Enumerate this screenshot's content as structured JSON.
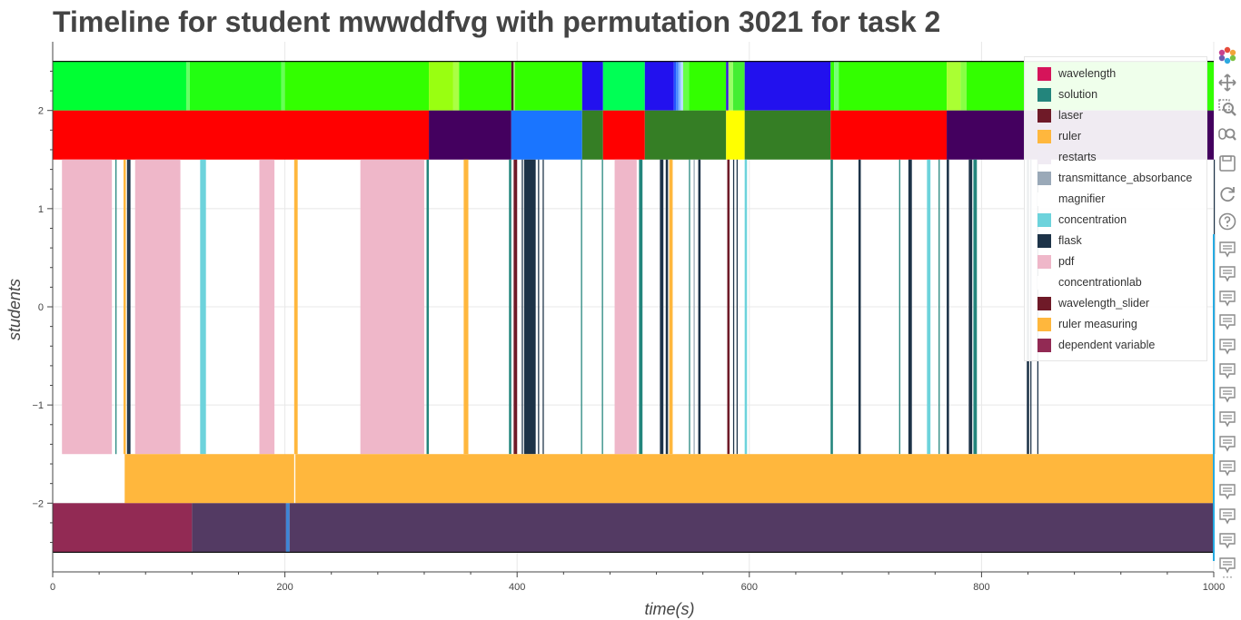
{
  "title": "Timeline for student mwwddfvg with permutation 3021 for task 2",
  "chart_data": {
    "type": "timeline",
    "title": "Timeline for student mwwddfvg with permutation 3021 for task 2",
    "xlabel": "time(s)",
    "ylabel": "students",
    "xlim": [
      0,
      1000
    ],
    "ylim": [
      -2.7,
      2.7
    ],
    "x_ticks": [
      0,
      200,
      400,
      600,
      800,
      1000
    ],
    "y_ticks": [
      2,
      1,
      0,
      -1,
      -2
    ],
    "x_tick_labels": [
      "0",
      "200",
      "400",
      "600",
      "800",
      "1000"
    ],
    "y_tick_labels": [
      "2",
      "1",
      "0",
      "−1",
      "−2"
    ],
    "grid": true,
    "legend_position": "top-right",
    "legend": [
      {
        "label": "wavelength",
        "color": "#d6145a"
      },
      {
        "label": "solution",
        "color": "#23857c"
      },
      {
        "label": "laser",
        "color": "#6f1a28"
      },
      {
        "label": "ruler",
        "color": "#ffb73d"
      },
      {
        "label": "restarts",
        "color": "#f0ebf3"
      },
      {
        "label": "transmittance_absorbance",
        "color": "#9aa9b8"
      },
      {
        "label": "magnifier",
        "color": "#ffffff"
      },
      {
        "label": "concentration",
        "color": "#6dd3dc"
      },
      {
        "label": "flask",
        "color": "#1d3348"
      },
      {
        "label": "pdf",
        "color": "#efb7c9"
      },
      {
        "label": "concentrationlab",
        "color": "#ffffff"
      },
      {
        "label": "wavelength_slider",
        "color": "#6f1a28"
      },
      {
        "label": "ruler measuring",
        "color": "#ffb73d"
      },
      {
        "label": "dependent variable",
        "color": "#922a54"
      }
    ],
    "rows": [
      {
        "y_range": [
          2,
          2.5
        ],
        "segments": [
          {
            "start": 0,
            "end": 115,
            "color": "#00ff33"
          },
          {
            "start": 115,
            "end": 118,
            "color": "#66ff66"
          },
          {
            "start": 118,
            "end": 197,
            "color": "#22ff11"
          },
          {
            "start": 197,
            "end": 200,
            "color": "#66ff55"
          },
          {
            "start": 200,
            "end": 324,
            "color": "#33ff00"
          },
          {
            "start": 324,
            "end": 345,
            "color": "#99ff11"
          },
          {
            "start": 345,
            "end": 350,
            "color": "#aaff44"
          },
          {
            "start": 350,
            "end": 395,
            "color": "#33ff00"
          },
          {
            "start": 395,
            "end": 397,
            "color": "#550033"
          },
          {
            "start": 397,
            "end": 398,
            "color": "#c0ff80"
          },
          {
            "start": 398,
            "end": 456,
            "color": "#33ff00"
          },
          {
            "start": 456,
            "end": 474,
            "color": "#2211ee"
          },
          {
            "start": 474,
            "end": 510,
            "color": "#00ff55"
          },
          {
            "start": 510,
            "end": 535,
            "color": "#2211ee"
          },
          {
            "start": 535,
            "end": 537,
            "color": "#2255ff"
          },
          {
            "start": 537,
            "end": 539,
            "color": "#4488ff"
          },
          {
            "start": 539,
            "end": 541,
            "color": "#88bbff"
          },
          {
            "start": 541,
            "end": 543,
            "color": "#bbddff"
          },
          {
            "start": 543,
            "end": 548,
            "color": "#66ff44"
          },
          {
            "start": 548,
            "end": 580,
            "color": "#33ff00"
          },
          {
            "start": 580,
            "end": 582,
            "color": "#3311dd"
          },
          {
            "start": 582,
            "end": 586,
            "color": "#99ff66"
          },
          {
            "start": 586,
            "end": 596,
            "color": "#44ee33"
          },
          {
            "start": 596,
            "end": 670,
            "color": "#2211ee"
          },
          {
            "start": 670,
            "end": 673,
            "color": "#33ff00"
          },
          {
            "start": 673,
            "end": 677,
            "color": "#77ff77"
          },
          {
            "start": 677,
            "end": 770,
            "color": "#33ff00"
          },
          {
            "start": 770,
            "end": 782,
            "color": "#aaff33"
          },
          {
            "start": 782,
            "end": 787,
            "color": "#88ff44"
          },
          {
            "start": 787,
            "end": 1000,
            "color": "#33ff00"
          }
        ]
      },
      {
        "y_range": [
          1.5,
          2
        ],
        "segments": [
          {
            "start": 0,
            "end": 324,
            "color": "#ff0000"
          },
          {
            "start": 324,
            "end": 395,
            "color": "#44005f"
          },
          {
            "start": 395,
            "end": 456,
            "color": "#1a75ff"
          },
          {
            "start": 456,
            "end": 474,
            "color": "#357e25"
          },
          {
            "start": 474,
            "end": 510,
            "color": "#ff0000"
          },
          {
            "start": 510,
            "end": 580,
            "color": "#357e25"
          },
          {
            "start": 580,
            "end": 596,
            "color": "#ffff00"
          },
          {
            "start": 596,
            "end": 670,
            "color": "#357e25"
          },
          {
            "start": 670,
            "end": 770,
            "color": "#ff0000"
          },
          {
            "start": 770,
            "end": 1000,
            "color": "#44005f"
          }
        ]
      },
      {
        "y_range": [
          -1.5,
          1.5
        ],
        "segments": [
          {
            "start": 8,
            "end": 51,
            "color": "#efb7c9"
          },
          {
            "start": 54,
            "end": 55,
            "color": "#23857c"
          },
          {
            "start": 61,
            "end": 63,
            "color": "#ffb73d"
          },
          {
            "start": 64,
            "end": 65,
            "color": "#1d3348"
          },
          {
            "start": 65,
            "end": 67,
            "color": "#1d3348"
          },
          {
            "start": 71,
            "end": 110,
            "color": "#efb7c9"
          },
          {
            "start": 127,
            "end": 132,
            "color": "#6dd3dc"
          },
          {
            "start": 178,
            "end": 191,
            "color": "#efb7c9"
          },
          {
            "start": 208,
            "end": 211,
            "color": "#ffb73d"
          },
          {
            "start": 265,
            "end": 320,
            "color": "#efb7c9"
          },
          {
            "start": 322,
            "end": 324,
            "color": "#23857c"
          },
          {
            "start": 354,
            "end": 358,
            "color": "#ffb73d"
          },
          {
            "start": 393,
            "end": 395,
            "color": "#23857c"
          },
          {
            "start": 397,
            "end": 400,
            "color": "#6f1a28"
          },
          {
            "start": 404,
            "end": 405,
            "color": "#1d3348"
          },
          {
            "start": 406,
            "end": 416,
            "color": "#1d3348"
          },
          {
            "start": 418,
            "end": 419,
            "color": "#1d3348"
          },
          {
            "start": 422,
            "end": 423,
            "color": "#1d3348"
          },
          {
            "start": 455,
            "end": 456,
            "color": "#23857c"
          },
          {
            "start": 473,
            "end": 474,
            "color": "#23857c"
          },
          {
            "start": 484,
            "end": 503,
            "color": "#efb7c9"
          },
          {
            "start": 505,
            "end": 508,
            "color": "#23857c"
          },
          {
            "start": 523,
            "end": 526,
            "color": "#1d3348"
          },
          {
            "start": 528,
            "end": 530,
            "color": "#1d3348"
          },
          {
            "start": 531,
            "end": 534,
            "color": "#ffb73d"
          },
          {
            "start": 548,
            "end": 549,
            "color": "#23857c"
          },
          {
            "start": 552,
            "end": 553,
            "color": "#9aa9b8"
          },
          {
            "start": 556,
            "end": 558,
            "color": "#1d3348"
          },
          {
            "start": 581,
            "end": 583,
            "color": "#6f1a28"
          },
          {
            "start": 586,
            "end": 587,
            "color": "#1d3348"
          },
          {
            "start": 589,
            "end": 590,
            "color": "#1d3348"
          },
          {
            "start": 596,
            "end": 598,
            "color": "#6dd3dc"
          },
          {
            "start": 670,
            "end": 672,
            "color": "#23857c"
          },
          {
            "start": 694,
            "end": 696,
            "color": "#1d3348"
          },
          {
            "start": 729,
            "end": 730,
            "color": "#23857c"
          },
          {
            "start": 737,
            "end": 740,
            "color": "#1d3348"
          },
          {
            "start": 753,
            "end": 756,
            "color": "#6dd3dc"
          },
          {
            "start": 763,
            "end": 764,
            "color": "#23857c"
          },
          {
            "start": 770,
            "end": 772,
            "color": "#1d3348"
          },
          {
            "start": 789,
            "end": 792,
            "color": "#1d3348"
          },
          {
            "start": 793,
            "end": 796,
            "color": "#23857c"
          },
          {
            "start": 839,
            "end": 841,
            "color": "#1d3348"
          },
          {
            "start": 842,
            "end": 843,
            "color": "#1d3348"
          },
          {
            "start": 848,
            "end": 849,
            "color": "#1d3348"
          },
          {
            "start": 1000,
            "end": 1000,
            "color": "#1d3348"
          }
        ]
      },
      {
        "y_range": [
          -2,
          -1.5
        ],
        "segments": [
          {
            "start": 62,
            "end": 208,
            "color": "#ffb73d"
          },
          {
            "start": 209,
            "end": 1000,
            "color": "#ffb73d"
          }
        ]
      },
      {
        "y_range": [
          -2.5,
          -2
        ],
        "segments": [
          {
            "start": 0,
            "end": 120,
            "color": "#922a54"
          },
          {
            "start": 120,
            "end": 201,
            "color": "#533a63"
          },
          {
            "start": 201,
            "end": 204,
            "color": "#3e85d6"
          },
          {
            "start": 204,
            "end": 1000,
            "color": "#533a63"
          }
        ]
      }
    ]
  },
  "toolbar": {
    "icons": [
      "bokeh-logo-icon",
      "pan-icon",
      "box-zoom-icon",
      "wheel-zoom-icon",
      "save-icon",
      "reset-icon",
      "help-icon",
      "hover-icon",
      "hover-icon",
      "hover-icon",
      "hover-icon",
      "hover-icon",
      "hover-icon",
      "hover-icon",
      "hover-icon",
      "hover-icon",
      "hover-icon",
      "hover-icon",
      "hover-icon",
      "hover-icon",
      "hover-icon",
      "more-icon"
    ],
    "more_label": "···"
  }
}
